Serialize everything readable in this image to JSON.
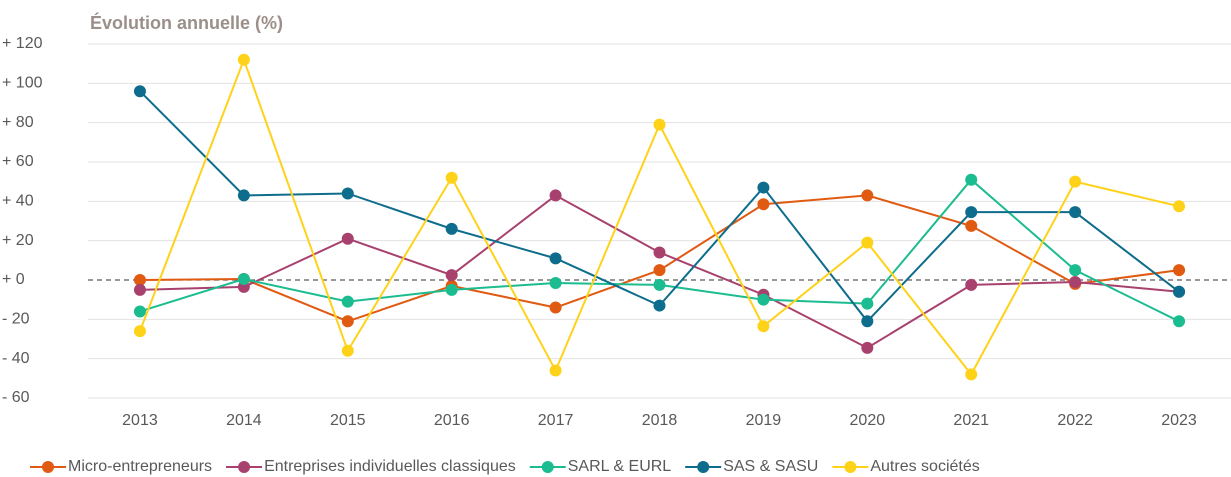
{
  "chart_data": {
    "type": "line",
    "title": "Évolution annuelle (%)",
    "categories": [
      "2013",
      "2014",
      "2015",
      "2016",
      "2017",
      "2018",
      "2019",
      "2020",
      "2021",
      "2022",
      "2023"
    ],
    "series": [
      {
        "name": "Micro-entrepreneurs",
        "color": "#e05a12",
        "values": [
          0,
          0.5,
          -21,
          -3,
          -14,
          5,
          38.5,
          43,
          27.5,
          -2,
          5
        ]
      },
      {
        "name": "Entreprises individuelles classiques",
        "color": "#a8416e",
        "values": [
          -5,
          -3.5,
          21,
          2.5,
          43,
          14,
          -7.5,
          -34.5,
          -2.5,
          -1,
          -6
        ]
      },
      {
        "name": "SARL & EURL",
        "color": "#1bbc8f",
        "values": [
          -16,
          0.5,
          -11,
          -5,
          -1.5,
          -2.5,
          -10,
          -12,
          51,
          5,
          -21
        ]
      },
      {
        "name": "SAS & SASU",
        "color": "#0e6d8c",
        "values": [
          96,
          43,
          44,
          26,
          11,
          -13,
          47,
          -21,
          34.5,
          34.5,
          -6
        ]
      },
      {
        "name": "Autres sociétés",
        "color": "#ffd21a",
        "values": [
          -26,
          112,
          -36,
          52,
          -46,
          79,
          -23.5,
          19,
          -48,
          50,
          37.5
        ]
      }
    ],
    "ylim": [
      -60,
      120
    ],
    "yticks": [
      {
        "value": -60,
        "label": "- 60"
      },
      {
        "value": -40,
        "label": "- 40"
      },
      {
        "value": -20,
        "label": "- 20"
      },
      {
        "value": 0,
        "label": "+ 0"
      },
      {
        "value": 20,
        "label": "+ 20"
      },
      {
        "value": 40,
        "label": "+ 40"
      },
      {
        "value": 60,
        "label": "+ 60"
      },
      {
        "value": 80,
        "label": "+ 80"
      },
      {
        "value": 100,
        "label": "+ 100"
      },
      {
        "value": 120,
        "label": "+ 120"
      }
    ],
    "grid": true
  }
}
